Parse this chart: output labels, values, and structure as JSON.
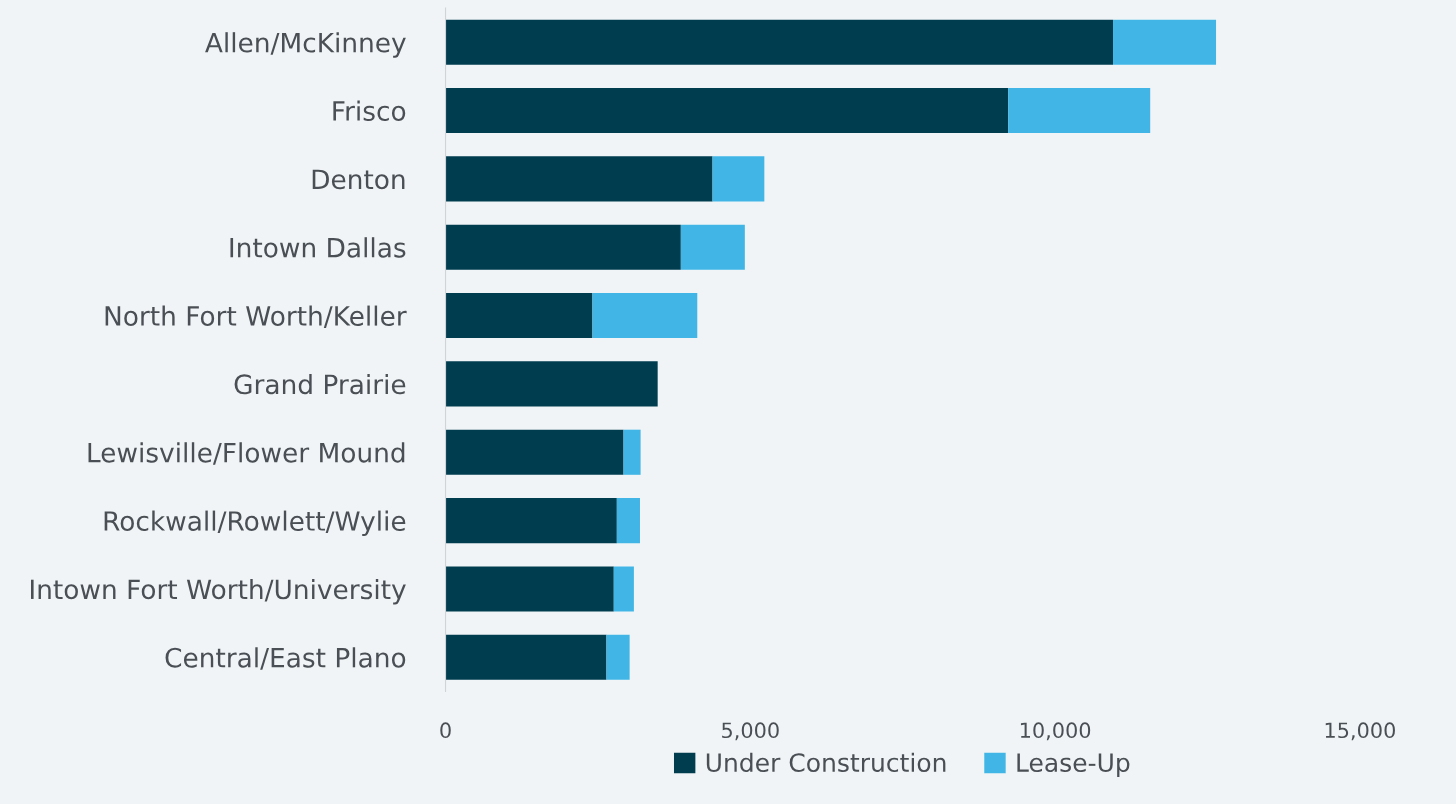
{
  "chart_data": {
    "type": "bar",
    "orientation": "horizontal",
    "stacked": true,
    "categories": [
      "Allen/McKinney",
      "Frisco",
      "Denton",
      "Intown Dallas",
      "North Fort Worth/Keller",
      "Grand Prairie",
      "Lewisville/Flower Mound",
      "Rockwall/Rowlett/Wylie",
      "Intown Fort Worth/University",
      "Central/East Plano"
    ],
    "series": [
      {
        "name": "Under Construction",
        "color": "#003d4f",
        "values": [
          10950,
          9230,
          4380,
          3860,
          2410,
          3480,
          2920,
          2810,
          2760,
          2640
        ]
      },
      {
        "name": "Lease-Up",
        "color": "#41b6e6",
        "values": [
          1690,
          2330,
          850,
          1050,
          1720,
          0,
          280,
          380,
          330,
          380
        ]
      }
    ],
    "xlim": [
      0,
      15000
    ],
    "xticks": [
      0,
      {
        "value": 5000,
        "label": "5,000"
      },
      {
        "value": 10000,
        "label": "10,000"
      },
      {
        "value": 15000,
        "label": "15,000"
      }
    ],
    "grid": false,
    "legend": "bottom"
  }
}
